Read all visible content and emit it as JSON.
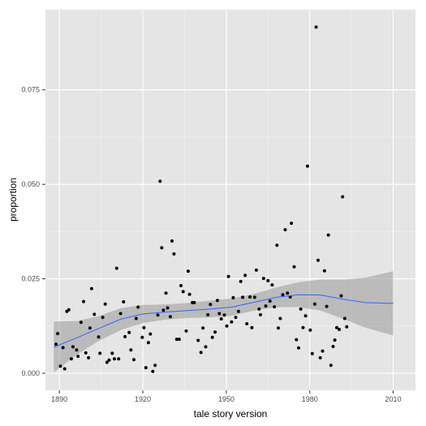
{
  "colors": {
    "panel": "#e5e5e5",
    "grid_major": "#ffffff",
    "grid_minor": "#f2f2f2",
    "point": "#000000",
    "smooth_line": "#3366ff",
    "band": "#999999"
  },
  "chart_data": {
    "type": "scatter",
    "title": "",
    "xlabel": "tale story version",
    "ylabel": "proportion",
    "xlim": [
      1885,
      2018
    ],
    "ylim": [
      -0.0045,
      0.0962
    ],
    "x_ticks": [
      1890,
      1920,
      1950,
      1980,
      2010
    ],
    "y_ticks": [
      0.0,
      0.025,
      0.05,
      0.075
    ],
    "x_tick_labels": [
      "1890",
      "1920",
      "1950",
      "1980",
      "2010"
    ],
    "y_tick_labels": [
      "0.000",
      "0.025",
      "0.050",
      "0.075"
    ],
    "grid": true,
    "legend": "none",
    "points": [
      [
        1888.8,
        0.0077
      ],
      [
        1889.4,
        0.0105
      ],
      [
        1890.4,
        0.0019
      ],
      [
        1891.3,
        0.0068
      ],
      [
        1891.9,
        0.0012
      ],
      [
        1892.7,
        0.0164
      ],
      [
        1893.4,
        0.0168
      ],
      [
        1894.3,
        0.0038
      ],
      [
        1894.9,
        0.007
      ],
      [
        1896.2,
        0.0062
      ],
      [
        1896.7,
        0.0045
      ],
      [
        1897.8,
        0.0135
      ],
      [
        1898.7,
        0.019
      ],
      [
        1899.5,
        0.0054
      ],
      [
        1900.5,
        0.0041
      ],
      [
        1901.0,
        0.012
      ],
      [
        1901.6,
        0.0224
      ],
      [
        1902.6,
        0.0156
      ],
      [
        1904.1,
        0.0096
      ],
      [
        1904.6,
        0.0053
      ],
      [
        1905.6,
        0.0148
      ],
      [
        1906.5,
        0.0183
      ],
      [
        1907.1,
        0.0029
      ],
      [
        1907.9,
        0.0035
      ],
      [
        1909.0,
        0.0053
      ],
      [
        1909.8,
        0.0038
      ],
      [
        1910.6,
        0.0278
      ],
      [
        1911.3,
        0.0038
      ],
      [
        1912.0,
        0.0158
      ],
      [
        1913.1,
        0.0189
      ],
      [
        1913.6,
        0.0097
      ],
      [
        1915.1,
        0.0108
      ],
      [
        1915.7,
        0.0062
      ],
      [
        1916.8,
        0.0036
      ],
      [
        1917.6,
        0.0145
      ],
      [
        1918.3,
        0.0175
      ],
      [
        1919.8,
        0.0095
      ],
      [
        1920.4,
        0.0121
      ],
      [
        1921.1,
        0.0015
      ],
      [
        1922.0,
        0.0081
      ],
      [
        1922.7,
        0.0104
      ],
      [
        1923.6,
        0.0005
      ],
      [
        1924.4,
        0.0021
      ],
      [
        1925.4,
        0.0154
      ],
      [
        1926.2,
        0.0508
      ],
      [
        1926.8,
        0.0332
      ],
      [
        1927.4,
        0.0167
      ],
      [
        1928.3,
        0.0212
      ],
      [
        1928.9,
        0.0173
      ],
      [
        1929.9,
        0.015
      ],
      [
        1930.5,
        0.035
      ],
      [
        1931.2,
        0.0316
      ],
      [
        1932.2,
        0.009
      ],
      [
        1933.1,
        0.009
      ],
      [
        1933.7,
        0.0232
      ],
      [
        1934.5,
        0.0216
      ],
      [
        1935.6,
        0.0112
      ],
      [
        1936.3,
        0.027
      ],
      [
        1936.8,
        0.0209
      ],
      [
        1937.8,
        0.0187
      ],
      [
        1938.5,
        0.0187
      ],
      [
        1939.9,
        0.0087
      ],
      [
        1940.9,
        0.0055
      ],
      [
        1941.6,
        0.012
      ],
      [
        1942.6,
        0.007
      ],
      [
        1943.4,
        0.0155
      ],
      [
        1944.3,
        0.0182
      ],
      [
        1945.0,
        0.0095
      ],
      [
        1946.0,
        0.0109
      ],
      [
        1946.8,
        0.0193
      ],
      [
        1947.5,
        0.0158
      ],
      [
        1948.2,
        0.0144
      ],
      [
        1949.3,
        0.0154
      ],
      [
        1950.2,
        0.0125
      ],
      [
        1950.8,
        0.0256
      ],
      [
        1951.9,
        0.0136
      ],
      [
        1952.5,
        0.02
      ],
      [
        1953.4,
        0.0148
      ],
      [
        1954.4,
        0.0164
      ],
      [
        1955.2,
        0.0243
      ],
      [
        1955.9,
        0.0201
      ],
      [
        1956.8,
        0.0259
      ],
      [
        1957.4,
        0.0131
      ],
      [
        1958.5,
        0.0202
      ],
      [
        1959.2,
        0.0121
      ],
      [
        1960.2,
        0.0201
      ],
      [
        1960.8,
        0.0273
      ],
      [
        1961.8,
        0.017
      ],
      [
        1962.3,
        0.0155
      ],
      [
        1963.4,
        0.0251
      ],
      [
        1964.2,
        0.0178
      ],
      [
        1965.0,
        0.0245
      ],
      [
        1965.7,
        0.0191
      ],
      [
        1966.5,
        0.0234
      ],
      [
        1967.3,
        0.0176
      ],
      [
        1968.2,
        0.0339
      ],
      [
        1968.7,
        0.012
      ],
      [
        1969.4,
        0.0145
      ],
      [
        1970.3,
        0.0208
      ],
      [
        1971.2,
        0.038
      ],
      [
        1972.0,
        0.0212
      ],
      [
        1973.0,
        0.0202
      ],
      [
        1973.4,
        0.0397
      ],
      [
        1974.4,
        0.0282
      ],
      [
        1975.2,
        0.0089
      ],
      [
        1976.0,
        0.0067
      ],
      [
        1976.8,
        0.017
      ],
      [
        1977.6,
        0.0121
      ],
      [
        1978.5,
        0.0152
      ],
      [
        1979.2,
        0.0548
      ],
      [
        1980.2,
        0.0114
      ],
      [
        1980.9,
        0.0052
      ],
      [
        1981.8,
        0.0183
      ],
      [
        1982.3,
        0.0916
      ],
      [
        1983.0,
        0.0299
      ],
      [
        1983.8,
        0.0041
      ],
      [
        1984.6,
        0.0059
      ],
      [
        1985.3,
        0.0271
      ],
      [
        1986.1,
        0.0177
      ],
      [
        1986.7,
        0.0366
      ],
      [
        1987.6,
        0.0021
      ],
      [
        1988.4,
        0.0071
      ],
      [
        1989.0,
        0.0088
      ],
      [
        1989.7,
        0.0121
      ],
      [
        1990.6,
        0.0116
      ],
      [
        1991.3,
        0.0205
      ],
      [
        1991.8,
        0.0467
      ],
      [
        1992.6,
        0.0145
      ],
      [
        1993.3,
        0.0123
      ]
    ],
    "smooth": {
      "x": [
        1888,
        1896,
        1904,
        1912,
        1920,
        1928,
        1936,
        1944,
        1952,
        1960,
        1968,
        1976,
        1984,
        1992,
        2000,
        2010
      ],
      "y": [
        0.0069,
        0.0093,
        0.0118,
        0.0143,
        0.0157,
        0.0162,
        0.0166,
        0.017,
        0.0175,
        0.0188,
        0.0201,
        0.0208,
        0.0207,
        0.0196,
        0.0187,
        0.0185
      ],
      "lower": [
        0.0002,
        0.0048,
        0.0085,
        0.0114,
        0.0133,
        0.0142,
        0.0146,
        0.0148,
        0.0152,
        0.0166,
        0.0175,
        0.0175,
        0.0166,
        0.0144,
        0.0121,
        0.01
      ],
      "upper": [
        0.0137,
        0.0138,
        0.0151,
        0.0172,
        0.0181,
        0.0182,
        0.0186,
        0.0192,
        0.0198,
        0.021,
        0.0227,
        0.0241,
        0.0248,
        0.0248,
        0.0253,
        0.027
      ]
    }
  }
}
